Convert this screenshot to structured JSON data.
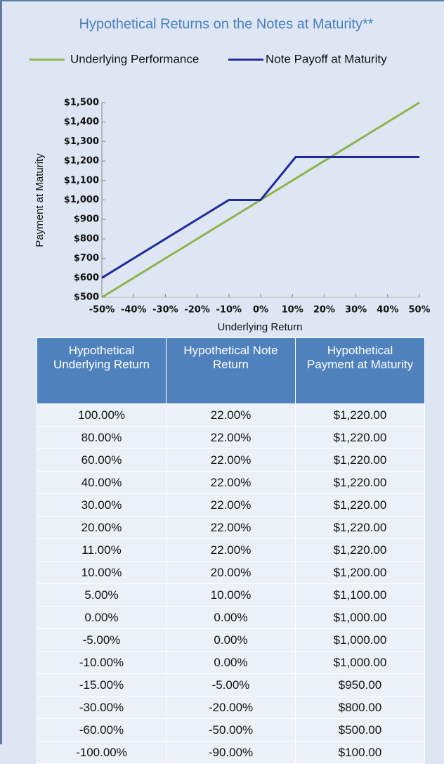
{
  "chart_data": {
    "type": "line",
    "title": "Hypothetical Returns on the Notes at Maturity**",
    "y_label": "Payment at Maturity",
    "x_label": "Underlying Return",
    "xlim": [
      -50,
      50
    ],
    "xticks": [
      {
        "value": -50,
        "label": "-50%"
      },
      {
        "value": -40,
        "label": "-40%"
      },
      {
        "value": -30,
        "label": "-30%"
      },
      {
        "value": -20,
        "label": "-20%"
      },
      {
        "value": -10,
        "label": "-10%"
      },
      {
        "value": 0,
        "label": "0%"
      },
      {
        "value": 10,
        "label": "10%"
      },
      {
        "value": 20,
        "label": "20%"
      },
      {
        "value": 30,
        "label": "30%"
      },
      {
        "value": 40,
        "label": "40%"
      },
      {
        "value": 50,
        "label": "50%"
      }
    ],
    "ylim": [
      500,
      1500
    ],
    "yticks": [
      {
        "value": 500,
        "label": "$500"
      },
      {
        "value": 600,
        "label": "$600"
      },
      {
        "value": 700,
        "label": "$700"
      },
      {
        "value": 800,
        "label": "$800"
      },
      {
        "value": 900,
        "label": "$900"
      },
      {
        "value": 1000,
        "label": "$1,000"
      },
      {
        "value": 1100,
        "label": "$1,100"
      },
      {
        "value": 1200,
        "label": "$1,200"
      },
      {
        "value": 1300,
        "label": "$1,300"
      },
      {
        "value": 1400,
        "label": "$1,400"
      },
      {
        "value": 1500,
        "label": "$1,500"
      }
    ],
    "series": [
      {
        "name": "Underlying Performance",
        "color": "#8db54e",
        "x": [
          -50,
          50
        ],
        "values": [
          500,
          1500
        ]
      },
      {
        "name": "Note Payoff at Maturity",
        "color": "#1f2a9c",
        "x": [
          -50,
          -10,
          0,
          11,
          50
        ],
        "values": [
          600,
          1000,
          1000,
          1220,
          1220
        ]
      }
    ]
  },
  "table": {
    "headers": [
      "Hypothetical Underlying Return",
      "Hypothetical Note Return",
      "Hypothetical Payment at Maturity"
    ],
    "rows": [
      [
        "100.00%",
        "22.00%",
        "$1,220.00"
      ],
      [
        "80.00%",
        "22.00%",
        "$1,220.00"
      ],
      [
        "60.00%",
        "22.00%",
        "$1,220.00"
      ],
      [
        "40.00%",
        "22.00%",
        "$1,220.00"
      ],
      [
        "30.00%",
        "22.00%",
        "$1,220.00"
      ],
      [
        "20.00%",
        "22.00%",
        "$1,220.00"
      ],
      [
        "11.00%",
        "22.00%",
        "$1,220.00"
      ],
      [
        "10.00%",
        "20.00%",
        "$1,200.00"
      ],
      [
        "5.00%",
        "10.00%",
        "$1,100.00"
      ],
      [
        "0.00%",
        "0.00%",
        "$1,000.00"
      ],
      [
        "-5.00%",
        "0.00%",
        "$1,000.00"
      ],
      [
        "-10.00%",
        "0.00%",
        "$1,000.00"
      ],
      [
        "-15.00%",
        "-5.00%",
        "$950.00"
      ],
      [
        "-30.00%",
        "-20.00%",
        "$800.00"
      ],
      [
        "-60.00%",
        "-50.00%",
        "$500.00"
      ],
      [
        "-100.00%",
        "-90.00%",
        "$100.00"
      ]
    ]
  }
}
